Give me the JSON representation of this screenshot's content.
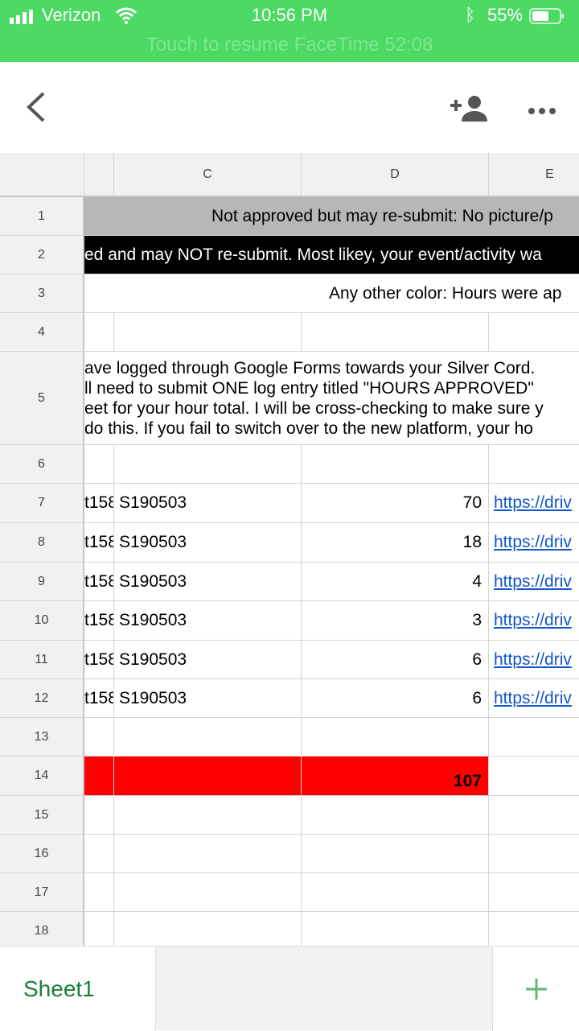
{
  "status_bar": {
    "carrier": "Verizon",
    "time": "10:56 PM",
    "battery": "55%",
    "facetime_banner": "Touch to resume FaceTime 52:08",
    "color": "#4cd964"
  },
  "columns": [
    "C",
    "D",
    "E"
  ],
  "rows": {
    "r1": {
      "num": "1",
      "text": "Not approved but may re-submit: No picture/p"
    },
    "r2": {
      "num": "2",
      "text": "ed and may NOT re-submit.  Most likey, your event/activity wa"
    },
    "r3": {
      "num": "3",
      "text": "Any other color: Hours were ap"
    },
    "r5": {
      "num": "5",
      "lines": [
        "ave logged through Google Forms towards your Silver Cord.",
        "ll need to submit ONE log entry titled \"HOURS APPROVED\"",
        "eet for your hour total.  I will be cross-checking to make sure y",
        " do this.  If you fail to switch over to the new platform, your ho"
      ]
    },
    "data": [
      {
        "num": "7",
        "b": "t158",
        "c": "S190503",
        "d": "70",
        "e": "https://driv"
      },
      {
        "num": "8",
        "b": "t158",
        "c": "S190503",
        "d": "18",
        "e": "https://driv"
      },
      {
        "num": "9",
        "b": "t158",
        "c": "S190503",
        "d": "4",
        "e": "https://driv"
      },
      {
        "num": "10",
        "b": "t158",
        "c": "S190503",
        "d": "3",
        "e": "https://driv"
      },
      {
        "num": "11",
        "b": "t158",
        "c": "S190503",
        "d": "6",
        "e": "https://driv"
      },
      {
        "num": "12",
        "b": "t158",
        "c": "S190503",
        "d": "6",
        "e": "https://driv"
      }
    ],
    "total": {
      "num": "14",
      "value": "107",
      "color": "#ff0000"
    },
    "empty_nums": [
      "4",
      "6",
      "13",
      "15",
      "16",
      "17",
      "18"
    ]
  },
  "sheet_tab": "Sheet1"
}
